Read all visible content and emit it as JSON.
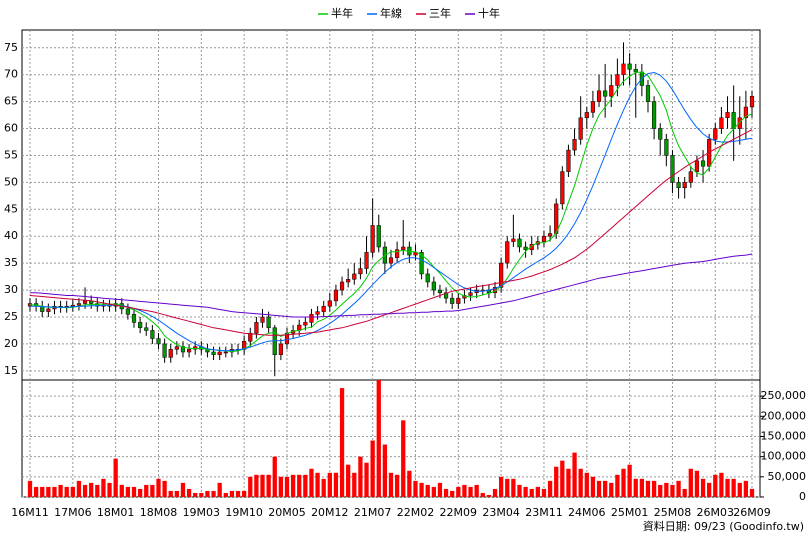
{
  "chart_data": {
    "type": "candlestick",
    "categories": [
      "16M11",
      null,
      null,
      null,
      null,
      null,
      null,
      "17M06",
      null,
      null,
      null,
      null,
      null,
      null,
      "18M01",
      null,
      null,
      null,
      null,
      null,
      null,
      "18M08",
      null,
      null,
      null,
      null,
      null,
      null,
      "19M03",
      null,
      null,
      null,
      null,
      null,
      null,
      "19M10",
      null,
      null,
      null,
      null,
      null,
      null,
      "20M05",
      null,
      null,
      null,
      null,
      null,
      null,
      "20M12",
      null,
      null,
      null,
      null,
      null,
      null,
      "21M07",
      null,
      null,
      null,
      null,
      null,
      null,
      "22M02",
      null,
      null,
      null,
      null,
      null,
      null,
      "22M09",
      null,
      null,
      null,
      null,
      null,
      null,
      "23M04",
      null,
      null,
      null,
      null,
      null,
      null,
      "23M11",
      null,
      null,
      null,
      null,
      null,
      null,
      "24M06",
      null,
      null,
      null,
      null,
      null,
      null,
      "25M01",
      null,
      null,
      null,
      null,
      null,
      null,
      "25M08",
      null,
      null,
      null,
      null,
      null,
      null,
      "26M03",
      null,
      null,
      null,
      null,
      null,
      "26M09"
    ],
    "open": [
      27,
      27.5,
      27,
      26,
      26.5,
      27,
      26.8,
      27,
      27.2,
      27.5,
      28,
      27.5,
      27,
      27.2,
      27,
      27.5,
      26.5,
      25.5,
      24,
      23,
      22.5,
      21,
      20,
      17.5,
      19,
      19.5,
      18.5,
      19,
      19.5,
      19,
      18.5,
      18,
      18.5,
      18.5,
      19,
      19,
      20.5,
      22,
      24,
      25,
      23,
      18,
      20,
      22,
      22.5,
      23.5,
      24,
      25.5,
      26,
      27,
      28,
      30,
      31.5,
      32,
      33,
      34,
      37,
      42,
      38,
      35,
      36,
      37.5,
      38,
      36.5,
      37,
      33,
      31.5,
      30,
      29.5,
      28.5,
      27.5,
      28.5,
      29,
      29.5,
      30,
      30,
      29.5,
      30.5,
      35,
      39,
      39.5,
      38,
      37.5,
      38.5,
      39,
      40,
      40.5,
      46,
      52,
      56,
      58,
      62,
      63,
      65,
      67,
      66,
      68,
      70,
      72,
      71,
      70.5,
      68,
      65,
      60,
      58,
      55,
      50,
      49,
      50,
      52,
      54,
      53,
      58,
      60,
      62,
      63,
      60,
      62,
      64
    ],
    "high": [
      28.5,
      28.5,
      28,
      27.5,
      28,
      28,
      28,
      28.2,
      28.5,
      30.5,
      29,
      28.5,
      28.2,
      28.2,
      28.5,
      28.5,
      27.5,
      26.5,
      25,
      24,
      23.5,
      22,
      21,
      20,
      20.5,
      20.5,
      20,
      20.5,
      20.5,
      20,
      19.5,
      19.5,
      19.5,
      20,
      20,
      21.5,
      23,
      25,
      26.5,
      26,
      23.5,
      21,
      23,
      23.5,
      24.5,
      25,
      26.5,
      27,
      28,
      29.5,
      31,
      32.5,
      34,
      35,
      36,
      40,
      47,
      44,
      39,
      37.5,
      39,
      43,
      39,
      38.5,
      37.5,
      34,
      32.5,
      31,
      30.5,
      29.5,
      29.5,
      30,
      30.5,
      31,
      31,
      31,
      31.5,
      36,
      40,
      44,
      40.5,
      39,
      40,
      40,
      41,
      42,
      47,
      53,
      57,
      60,
      66,
      64,
      67,
      70,
      72,
      70,
      73,
      76,
      74,
      72,
      72,
      69,
      66,
      61,
      59,
      56,
      51,
      51,
      53,
      55,
      56,
      59,
      61,
      64,
      66,
      68,
      66,
      67,
      67
    ],
    "low": [
      26,
      26,
      25,
      25,
      25.5,
      25.8,
      25.8,
      26,
      26.2,
      26.5,
      26.5,
      26,
      26,
      26,
      26,
      25.5,
      24.5,
      23,
      22,
      21.5,
      20,
      19,
      16.5,
      16.5,
      18,
      17.5,
      17.5,
      18,
      18,
      17.5,
      17,
      17,
      17.5,
      17.5,
      18,
      18,
      19.5,
      21,
      23,
      22,
      14,
      17,
      19,
      21,
      21.5,
      22.5,
      23,
      24.5,
      25,
      26,
      27,
      29,
      30.5,
      31,
      32,
      33,
      36,
      37,
      33,
      34,
      35,
      36.5,
      35,
      35.5,
      32,
      30.5,
      29,
      28.5,
      27.5,
      26.5,
      26.5,
      27.5,
      28,
      28.5,
      29,
      28.5,
      28.5,
      29.5,
      34,
      38,
      37,
      36,
      36.5,
      37.5,
      38,
      39,
      39.5,
      45,
      51,
      55,
      57,
      60,
      62,
      64,
      62,
      64,
      66,
      68,
      68,
      62,
      66,
      63,
      58,
      55,
      53,
      48,
      47,
      47,
      49,
      51,
      50,
      52,
      57,
      59,
      60,
      54,
      57,
      58,
      62
    ],
    "close": [
      27.5,
      27,
      26,
      26.5,
      27,
      26.8,
      27,
      27.2,
      27.5,
      28,
      27.5,
      27,
      27.2,
      27,
      27.5,
      26.5,
      25.5,
      24,
      23,
      22.5,
      21,
      20,
      17.5,
      19,
      19.5,
      18.5,
      19,
      19.5,
      19,
      18.5,
      18,
      18.5,
      18.5,
      19,
      19,
      20.5,
      22,
      24,
      25,
      23,
      18,
      20,
      22,
      22.5,
      23.5,
      24,
      25.5,
      26,
      27,
      28,
      30,
      31.5,
      32,
      33,
      34,
      37,
      42,
      38,
      35,
      36,
      37.5,
      38,
      36.5,
      37,
      33,
      31.5,
      30,
      29.5,
      28.5,
      27.5,
      28.5,
      29,
      29.5,
      30,
      30,
      29.5,
      30.5,
      35,
      39,
      39.5,
      38,
      37.5,
      38.5,
      39,
      40,
      40.5,
      46,
      52,
      56,
      58,
      62,
      63,
      65,
      67,
      66,
      68,
      70,
      72,
      71,
      70.5,
      68,
      65,
      60,
      58,
      55,
      50,
      49,
      50,
      52,
      54,
      53,
      58,
      60,
      62,
      63,
      60,
      62,
      64,
      66
    ],
    "volume": [
      40000,
      25000,
      25000,
      25000,
      25000,
      30000,
      25000,
      25000,
      40000,
      30000,
      35000,
      30000,
      45000,
      35000,
      95000,
      30000,
      25000,
      25000,
      20000,
      30000,
      30000,
      45000,
      40000,
      15000,
      15000,
      35000,
      20000,
      10000,
      10000,
      15000,
      15000,
      35000,
      10000,
      15000,
      15000,
      15000,
      50000,
      55000,
      55000,
      55000,
      100000,
      50000,
      50000,
      55000,
      55000,
      55000,
      70000,
      60000,
      45000,
      60000,
      60000,
      270000,
      80000,
      60000,
      100000,
      85000,
      140000,
      290000,
      130000,
      60000,
      55000,
      190000,
      65000,
      40000,
      35000,
      30000,
      25000,
      35000,
      20000,
      15000,
      25000,
      30000,
      25000,
      30000,
      10000,
      5000,
      20000,
      50000,
      45000,
      45000,
      30000,
      25000,
      20000,
      25000,
      20000,
      40000,
      75000,
      90000,
      70000,
      110000,
      70000,
      60000,
      50000,
      40000,
      40000,
      35000,
      55000,
      70000,
      80000,
      45000,
      45000,
      40000,
      40000,
      30000,
      35000,
      30000,
      40000,
      20000,
      70000,
      65000,
      45000,
      35000,
      55000,
      60000,
      45000,
      45000,
      35000,
      40000,
      20000
    ],
    "up_color": "#ff0000",
    "down_color": "#009900",
    "volume_color": "#ff0000",
    "series": [
      {
        "name": "半年",
        "color": "#00cc00",
        "values": [
          27.3,
          27.2,
          27,
          26.8,
          26.8,
          26.8,
          26.7,
          26.8,
          27,
          27.3,
          27.3,
          27.4,
          27.4,
          27.4,
          27.4,
          27.2,
          26.8,
          26.3,
          25.7,
          25,
          24.1,
          23.1,
          21.5,
          20.6,
          19.9,
          19.4,
          19.2,
          19.1,
          19.2,
          19,
          18.9,
          18.8,
          18.7,
          18.6,
          18.7,
          19.1,
          19.7,
          20.6,
          21.5,
          22,
          22.1,
          21.4,
          21.9,
          22.4,
          22.5,
          22.9,
          23.1,
          24.1,
          24.6,
          25.3,
          26.3,
          27.4,
          28.4,
          29.4,
          30.6,
          32.2,
          34.3,
          35.5,
          36.4,
          37.1,
          37.1,
          37.4,
          37.1,
          37.1,
          36.5,
          35.6,
          34.3,
          33.1,
          31.7,
          30.4,
          29.4,
          28.9,
          28.7,
          28.8,
          29.1,
          29.4,
          29.8,
          30.7,
          32.2,
          34,
          35.7,
          37.2,
          38.2,
          38.8,
          38.8,
          39.3,
          40.6,
          43.1,
          46.3,
          49.4,
          53.2,
          56.9,
          60,
          62.5,
          64,
          65.5,
          67.3,
          68.8,
          69.7,
          70.4,
          70.5,
          69.8,
          68,
          66.1,
          63.4,
          59.6,
          56.8,
          54.8,
          52.9,
          51.7,
          51.4,
          52.7,
          54.7,
          56.8,
          58.7,
          59.9,
          61.2,
          62.3,
          62.7
        ]
      },
      {
        "name": "年線",
        "color": "#0066ff",
        "values": [
          27,
          27,
          26.9,
          26.9,
          26.8,
          26.8,
          26.8,
          26.9,
          27,
          27,
          27.1,
          27.1,
          27.2,
          27.2,
          27.2,
          27.1,
          26.9,
          26.6,
          26.2,
          25.7,
          25.1,
          24.4,
          23.6,
          22.8,
          22,
          21.3,
          20.6,
          20,
          19.5,
          19.1,
          18.9,
          18.8,
          18.7,
          18.8,
          18.9,
          19.1,
          19.4,
          19.8,
          20.2,
          20.5,
          20.6,
          20.6,
          20.8,
          21,
          21.3,
          21.6,
          22,
          22.5,
          23.1,
          23.8,
          24.6,
          25.5,
          26.5,
          27.5,
          28.6,
          29.8,
          31,
          32.2,
          33.3,
          34.3,
          35.1,
          35.7,
          36,
          36,
          35.6,
          35,
          34.2,
          33.4,
          32.6,
          31.8,
          31,
          30.4,
          30,
          29.8,
          29.8,
          30,
          30.3,
          30.8,
          31.5,
          32.3,
          33.1,
          33.9,
          34.6,
          35.3,
          36,
          36.8,
          37.8,
          39,
          40.5,
          42.3,
          44.4,
          46.8,
          49.4,
          52.2,
          55.1,
          58,
          60.8,
          63.4,
          65.8,
          67.8,
          69.3,
          70.2,
          70.4,
          69.9,
          68.8,
          67.2,
          65.3,
          63.4,
          61.7,
          60.2,
          59,
          58.2,
          57.7,
          57.5,
          57.5,
          57.6,
          57.8,
          58,
          58.2
        ]
      },
      {
        "name": "三年",
        "color": "#cc0033",
        "values": [
          29,
          28.9,
          28.8,
          28.7,
          28.6,
          28.5,
          28.4,
          28.3,
          28.2,
          28.1,
          28,
          27.8,
          27.6,
          27.4,
          27.2,
          27,
          26.8,
          26.6,
          26.4,
          26.2,
          26,
          25.7,
          25.4,
          25.1,
          24.8,
          24.5,
          24.2,
          23.9,
          23.6,
          23.3,
          23,
          22.8,
          22.6,
          22.4,
          22.2,
          22,
          21.9,
          21.8,
          21.7,
          21.6,
          21.6,
          21.6,
          21.7,
          21.8,
          21.9,
          22,
          22.1,
          22.2,
          22.4,
          22.6,
          22.8,
          23,
          23.3,
          23.6,
          23.9,
          24.2,
          24.6,
          25,
          25.4,
          25.8,
          26.2,
          26.6,
          27,
          27.4,
          27.8,
          28.2,
          28.6,
          29,
          29.4,
          29.8,
          30,
          30.2,
          30.4,
          30.6,
          30.8,
          31,
          31.2,
          31.4,
          31.6,
          31.8,
          32,
          32.3,
          32.6,
          33,
          33.4,
          33.8,
          34.3,
          34.8,
          35.4,
          36,
          36.8,
          37.6,
          38.5,
          39.5,
          40.5,
          41.5,
          42.5,
          43.5,
          44.5,
          45.5,
          46.5,
          47.5,
          48.5,
          49.5,
          50.4,
          51.2,
          52,
          52.8,
          53.5,
          54.2,
          54.9,
          55.6,
          56.2,
          56.8,
          57.4,
          58,
          58.6,
          59.2,
          59.8
        ]
      },
      {
        "name": "十年",
        "color": "#6600cc",
        "values": [
          29.5,
          29.5,
          29.4,
          29.3,
          29.2,
          29.1,
          29,
          29,
          28.9,
          28.8,
          28.7,
          28.6,
          28.5,
          28.4,
          28.3,
          28.2,
          28.1,
          28,
          27.9,
          27.8,
          27.7,
          27.6,
          27.5,
          27.4,
          27.3,
          27.2,
          27.1,
          27,
          26.9,
          26.8,
          26.6,
          26.4,
          26.2,
          26,
          25.9,
          25.8,
          25.7,
          25.6,
          25.5,
          25.4,
          25.3,
          25.2,
          25.1,
          25,
          25,
          25,
          25,
          25,
          25.1,
          25.1,
          25.2,
          25.2,
          25.3,
          25.3,
          25.4,
          25.4,
          25.5,
          25.5,
          25.6,
          25.6,
          25.7,
          25.7,
          25.8,
          25.8,
          25.9,
          25.9,
          26,
          26,
          26.1,
          26.1,
          26.2,
          26.4,
          26.6,
          26.8,
          27,
          27.2,
          27.4,
          27.6,
          27.8,
          28,
          28.3,
          28.6,
          28.9,
          29.2,
          29.5,
          29.8,
          30.1,
          30.4,
          30.7,
          31,
          31.3,
          31.6,
          31.9,
          32.2,
          32.4,
          32.6,
          32.8,
          33,
          33.2,
          33.4,
          33.6,
          33.8,
          34,
          34.2,
          34.4,
          34.6,
          34.8,
          35,
          35.1,
          35.2,
          35.3,
          35.5,
          35.7,
          35.9,
          36.1,
          36.3,
          36.4,
          36.5,
          36.7
        ]
      }
    ],
    "ylim": [
      13.3,
      78.3
    ],
    "yticks": [
      15,
      20,
      25,
      30,
      35,
      40,
      45,
      50,
      55,
      60,
      65,
      70,
      75
    ],
    "y2lim": [
      0,
      290000
    ],
    "y2ticks": [
      0,
      {
        "value": 50000,
        "label": "50,000"
      },
      {
        "value": 100000,
        "label": "100,000"
      },
      {
        "value": 150000,
        "label": "150,000"
      },
      {
        "value": 200000,
        "label": "200,000"
      },
      {
        "value": 250000,
        "label": "250,000"
      }
    ],
    "grid": true,
    "note": "資料日期: 09/23  (Goodinfo.tw)"
  }
}
